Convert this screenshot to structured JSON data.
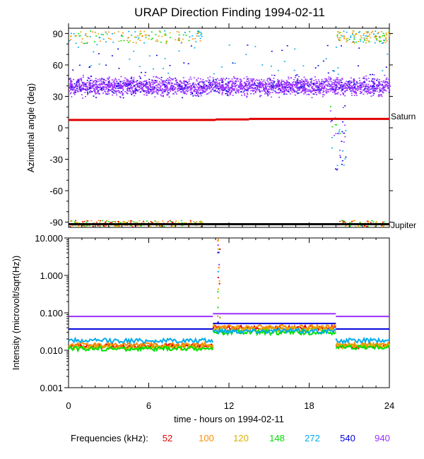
{
  "chart_data": [
    {
      "type": "scatter",
      "title": "URAP Direction Finding  1994-02-11",
      "xlabel": "",
      "ylabel": "Azimuthal angle (deg)",
      "xlim": [
        0,
        24
      ],
      "ylim": [
        -95,
        95
      ],
      "yticks": [
        90,
        60,
        30,
        0,
        -30,
        -60,
        -90
      ],
      "ytick_labels": [
        "90",
        "60",
        "30",
        "0",
        "-30",
        "-60",
        "-90"
      ],
      "annotations": [
        {
          "text": "Saturn",
          "y": 8
        },
        {
          "text": "Jupiter",
          "y": -92
        }
      ],
      "reference_lines": [
        {
          "name": "Saturn",
          "color": "#e00000",
          "segments": [
            [
              0,
              11,
              7.5
            ],
            [
              11,
              13.5,
              8
            ],
            [
              13.5,
              24,
              8.5
            ]
          ]
        },
        {
          "name": "Jupiter",
          "color": "#000000",
          "segments": [
            [
              0,
              24,
              -92
            ]
          ]
        }
      ],
      "series": [
        {
          "name": "940",
          "color": "#9b30ff",
          "band": {
            "center": 40,
            "spread": 5,
            "x": [
              0,
              24
            ]
          }
        }
      ]
    },
    {
      "type": "line",
      "title": "",
      "xlabel": "time - hours on 1994-02-11",
      "ylabel": "Intensity (microvolt/sqrt(Hz))",
      "scale": "log",
      "xlim": [
        0,
        24
      ],
      "xticks": [
        0,
        6,
        12,
        18,
        24
      ],
      "xtick_labels": [
        "0",
        "6",
        "12",
        "18",
        "24"
      ],
      "ylim": [
        0.001,
        10
      ],
      "yticks": [
        10,
        1,
        0.1,
        0.01,
        0.001
      ],
      "ytick_labels": [
        "10.000",
        "1.000",
        "0.100",
        "0.010",
        "0.001"
      ],
      "series": [
        {
          "name": "52",
          "color": "#e00000",
          "segments": [
            [
              0,
              10.8,
              0.013
            ],
            [
              10.8,
              20,
              0.04
            ],
            [
              20,
              24,
              0.013
            ]
          ]
        },
        {
          "name": "100",
          "color": "#ff8c00",
          "segments": [
            [
              0,
              10.8,
              0.014
            ],
            [
              10.8,
              20,
              0.042
            ],
            [
              20,
              24,
              0.014
            ]
          ]
        },
        {
          "name": "120",
          "color": "#d4b000",
          "segments": [
            [
              0,
              10.8,
              0.012
            ],
            [
              10.8,
              20,
              0.036
            ],
            [
              20,
              24,
              0.013
            ]
          ]
        },
        {
          "name": "148",
          "color": "#00e000",
          "segments": [
            [
              0,
              10.8,
              0.011
            ],
            [
              10.8,
              20,
              0.03
            ],
            [
              20,
              24,
              0.012
            ]
          ]
        },
        {
          "name": "272",
          "color": "#00aaee",
          "segments": [
            [
              0,
              10.8,
              0.018
            ],
            [
              10.8,
              20,
              0.033
            ],
            [
              20,
              24,
              0.018
            ]
          ]
        },
        {
          "name": "540",
          "color": "#0000dd",
          "segments": [
            [
              0,
              10.8,
              0.037
            ],
            [
              10.8,
              20,
              0.052
            ],
            [
              20,
              24,
              0.037
            ]
          ]
        },
        {
          "name": "940",
          "color": "#9b30ff",
          "segments": [
            [
              0,
              10.8,
              0.08
            ],
            [
              10.8,
              20,
              0.095
            ],
            [
              20,
              24,
              0.08
            ]
          ]
        }
      ]
    }
  ],
  "legend": {
    "label": "Frequencies (kHz):",
    "items": [
      {
        "name": "52",
        "color": "#e00000"
      },
      {
        "name": "100",
        "color": "#ff8c00"
      },
      {
        "name": "120",
        "color": "#d4b000"
      },
      {
        "name": "148",
        "color": "#00e000"
      },
      {
        "name": "272",
        "color": "#00aaee"
      },
      {
        "name": "540",
        "color": "#0000dd"
      },
      {
        "name": "940",
        "color": "#9b30ff"
      }
    ]
  }
}
